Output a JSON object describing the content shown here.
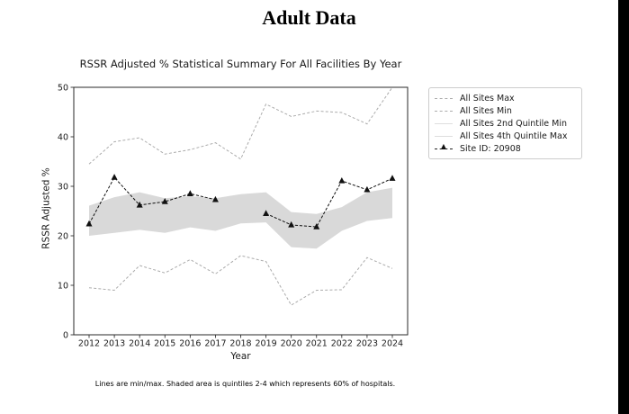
{
  "title": "Adult Data",
  "chart_data": {
    "type": "line",
    "title": "RSSR Adjusted % Statistical Summary For All Facilities By Year",
    "xlabel": "Year",
    "ylabel": "RSSR Adjusted %",
    "ylim": [
      0,
      50
    ],
    "yticks": [
      0,
      10,
      20,
      30,
      40,
      50
    ],
    "categories": [
      "2012",
      "2013",
      "2014",
      "2015",
      "2016",
      "2017",
      "2018",
      "2019",
      "2020",
      "2021",
      "2022",
      "2023",
      "2024"
    ],
    "grid": false,
    "legend_position": "outside-right",
    "footnote": "Lines are min/max. Shaded area is quintiles 2-4 which represents 60% of hospitals.",
    "band": {
      "fill": "#d9d9d9",
      "upper_series": "All Sites 4th Quintile Max",
      "lower_series": "All Sites 2nd Quintile Min"
    },
    "colors": {
      "minmax_line": "#ababab",
      "quintile_line": "#dedede",
      "site_line": "#111111",
      "spine": "#2a2a2a",
      "tick_text": "#1a1a1a"
    },
    "series": [
      {
        "name": "All Sites Max",
        "role": "line",
        "style": "dashed",
        "color": "#ababab",
        "values": [
          34.5,
          39.0,
          39.8,
          36.5,
          37.4,
          38.8,
          35.5,
          46.6,
          44.1,
          45.2,
          44.9,
          42.6,
          50.0
        ]
      },
      {
        "name": "All Sites Min",
        "role": "line",
        "style": "dashed",
        "color": "#ababab",
        "values": [
          9.5,
          9.0,
          14.0,
          12.5,
          15.2,
          12.3,
          16.0,
          14.8,
          6.0,
          9.0,
          9.1,
          15.6,
          13.4
        ]
      },
      {
        "name": "All Sites 2nd Quintile Min",
        "role": "band-lower",
        "style": "solid",
        "color": "#dedede",
        "values": [
          20.0,
          20.6,
          21.2,
          20.6,
          21.7,
          21.0,
          22.5,
          22.7,
          17.7,
          17.4,
          21.0,
          23.0,
          23.6
        ]
      },
      {
        "name": "All Sites 4th Quintile Max",
        "role": "band-upper",
        "style": "solid",
        "color": "#dedede",
        "values": [
          26.1,
          27.8,
          28.8,
          27.6,
          28.0,
          27.6,
          28.4,
          28.8,
          24.8,
          24.4,
          25.8,
          28.8,
          29.7
        ]
      },
      {
        "name": "Site ID: 20908",
        "role": "line-markers",
        "style": "dashed",
        "color": "#111111",
        "marker": "triangle",
        "values": [
          22.4,
          31.8,
          26.2,
          26.9,
          28.5,
          27.3,
          null,
          24.5,
          22.2,
          21.8,
          31.1,
          29.3,
          31.6
        ]
      }
    ]
  }
}
